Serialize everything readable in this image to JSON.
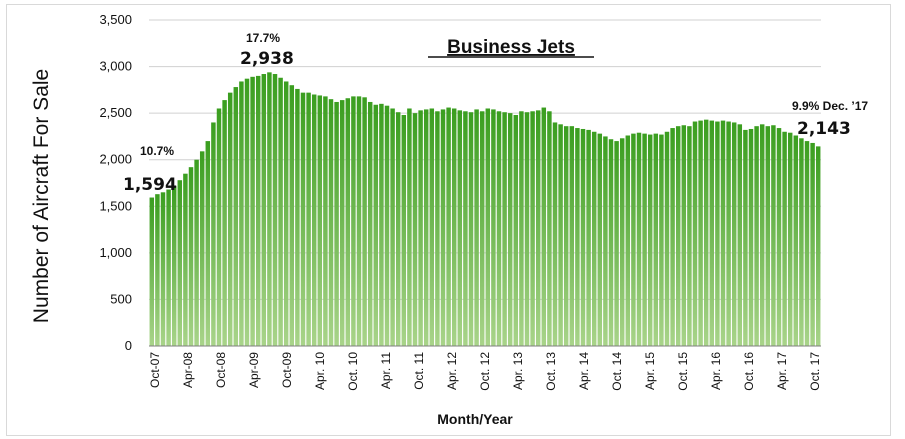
{
  "chart_data": {
    "type": "bar",
    "title": "Business Jets",
    "ylabel": "Number  of Aircraft For Sale",
    "xlabel": "Month/Year",
    "ylim": [
      0,
      3500
    ],
    "yticks": [
      "0",
      "500",
      "1,000",
      "1,500",
      "2,000",
      "2,500",
      "3,000",
      "3,500"
    ],
    "grid": "horizontal",
    "bar_color": "#3a9e1f",
    "bar_color_light": "#a9d48a",
    "xtick_labels": [
      "Oct-07",
      "Apr-08",
      "Oct-08",
      "Apr-09",
      "Oct-09",
      "Apr. 10",
      "Oct. 10",
      "Apr. 11",
      "Oct. 11",
      "Apr. 12",
      "Oct. 12",
      "Apr. 13",
      "Oct. 13",
      "Apr. 14",
      "Oct. 14",
      "Apr. 15",
      "Oct. 15",
      "Apr. 16",
      "Oct. 16",
      "Apr. 17",
      "Oct. 17"
    ],
    "series": [
      {
        "categories_note": "",
        "values": [
          1594,
          1630,
          1650,
          1680,
          1720,
          1780,
          1850,
          1920,
          2000,
          2090,
          2200,
          2400,
          2550,
          2640,
          2720,
          2780,
          2840,
          2870,
          2890,
          2900,
          2920,
          2938,
          2920,
          2880,
          2840,
          2800,
          2760,
          2720,
          2720,
          2700,
          2690,
          2680,
          2650,
          2620,
          2640,
          2660,
          2680,
          2680,
          2670,
          2620,
          2590,
          2600,
          2580,
          2550,
          2510,
          2480,
          2550,
          2500,
          2530,
          2540,
          2550,
          2520,
          2540,
          2560,
          2550,
          2530,
          2520,
          2510,
          2540,
          2520,
          2550,
          2540,
          2520,
          2510,
          2500,
          2480,
          2520,
          2510,
          2520,
          2530,
          2560,
          2520,
          2400,
          2380,
          2360,
          2360,
          2340,
          2330,
          2320,
          2300,
          2280,
          2250,
          2220,
          2200,
          2230,
          2260,
          2280,
          2290,
          2280,
          2270,
          2280,
          2270,
          2300,
          2340,
          2360,
          2370,
          2360,
          2410,
          2420,
          2430,
          2420,
          2410,
          2420,
          2410,
          2400,
          2380,
          2320,
          2330,
          2360,
          2380,
          2360,
          2370,
          2340,
          2300,
          2290,
          2260,
          2230,
          2200,
          2180,
          2143
        ]
      }
    ],
    "annotations": [
      {
        "pct": "10.7%",
        "value": "1,594"
      },
      {
        "pct": "17.7%",
        "value": "2,938"
      },
      {
        "pct": "9.9% Dec. ’17",
        "value": "2,143"
      }
    ]
  }
}
